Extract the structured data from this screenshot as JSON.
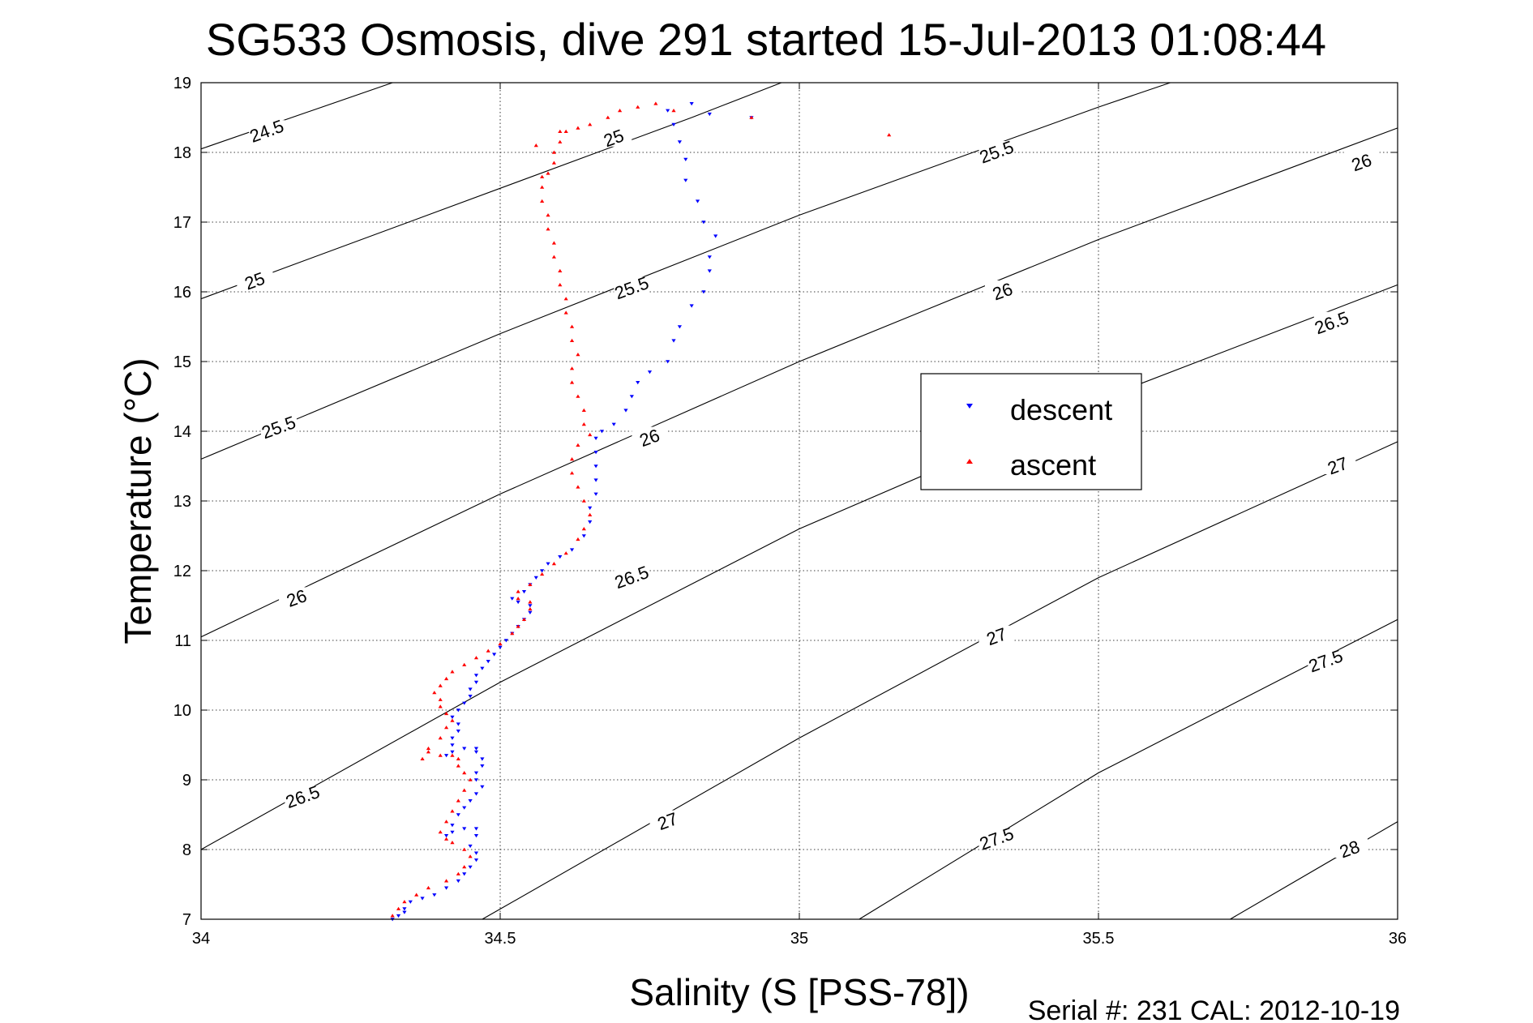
{
  "chart_data": {
    "type": "scatter",
    "title": "SG533 Osmosis, dive 291 started 15-Jul-2013 01:08:44",
    "xlabel": "Salinity (S [PSS-78])",
    "ylabel": "Temperature (°C)",
    "xlim": [
      34,
      36
    ],
    "ylim": [
      7,
      19
    ],
    "xticks": [
      34,
      34.5,
      35,
      35.5,
      36
    ],
    "xtick_labels": [
      "34",
      "34.5",
      "35",
      "35.5",
      "36"
    ],
    "yticks": [
      7,
      8,
      9,
      10,
      11,
      12,
      13,
      14,
      15,
      16,
      17,
      18,
      19
    ],
    "ytick_labels": [
      "7",
      "8",
      "9",
      "10",
      "11",
      "12",
      "13",
      "14",
      "15",
      "16",
      "17",
      "18",
      "19"
    ],
    "grid": true,
    "legend_position": "right-center",
    "footer": "Serial #: 231  CAL: 2012-10-19",
    "density_contours": [
      {
        "sigma": 24.5,
        "label": "24.5",
        "line": [
          [
            34.0,
            18.05
          ],
          [
            34.32,
            19.0
          ]
        ]
      },
      {
        "sigma": 25.0,
        "label": "25",
        "line": [
          [
            34.0,
            15.9
          ],
          [
            34.82,
            18.5
          ],
          [
            34.97,
            19.0
          ]
        ]
      },
      {
        "sigma": 25.0,
        "label": "25",
        "line": [
          [
            34.0,
            15.9
          ],
          [
            34.82,
            18.5
          ],
          [
            34.97,
            19.0
          ]
        ]
      },
      {
        "sigma": 25.5,
        "label": "25.5",
        "line": [
          [
            34.0,
            13.6
          ],
          [
            34.5,
            15.4
          ],
          [
            35.0,
            17.1
          ],
          [
            35.5,
            18.65
          ],
          [
            35.62,
            19.0
          ]
        ]
      },
      {
        "sigma": 26.0,
        "label": "26",
        "line": [
          [
            34.0,
            11.05
          ],
          [
            34.5,
            13.1
          ],
          [
            35.0,
            15.0
          ],
          [
            35.5,
            16.75
          ],
          [
            36.0,
            18.35
          ]
        ]
      },
      {
        "sigma": 26.5,
        "label": "26.5",
        "line": [
          [
            34.0,
            8.0
          ],
          [
            34.5,
            10.4
          ],
          [
            35.0,
            12.6
          ],
          [
            35.5,
            14.45
          ],
          [
            36.0,
            16.1
          ]
        ]
      },
      {
        "sigma": 27.0,
        "label": "27",
        "line": [
          [
            34.47,
            7.0
          ],
          [
            35.0,
            9.6
          ],
          [
            35.5,
            11.9
          ],
          [
            36.0,
            13.85
          ]
        ]
      },
      {
        "sigma": 27.5,
        "label": "27.5",
        "line": [
          [
            35.1,
            7.0
          ],
          [
            35.5,
            9.1
          ],
          [
            36.0,
            11.3
          ]
        ]
      },
      {
        "sigma": 28.0,
        "label": "28",
        "line": [
          [
            35.72,
            7.0
          ],
          [
            36.0,
            8.4
          ]
        ]
      }
    ],
    "contour_labels": [
      {
        "text": "24.5",
        "x": 34.11,
        "y": 18.3
      },
      {
        "text": "25",
        "x": 34.69,
        "y": 18.2
      },
      {
        "text": "25",
        "x": 34.09,
        "y": 16.15
      },
      {
        "text": "25.5",
        "x": 35.33,
        "y": 18.0
      },
      {
        "text": "25.5",
        "x": 34.72,
        "y": 16.05
      },
      {
        "text": "25.5",
        "x": 34.13,
        "y": 14.05
      },
      {
        "text": "26",
        "x": 35.94,
        "y": 17.85
      },
      {
        "text": "26",
        "x": 35.34,
        "y": 16.0
      },
      {
        "text": "26",
        "x": 34.75,
        "y": 13.9
      },
      {
        "text": "26",
        "x": 34.16,
        "y": 11.6
      },
      {
        "text": "26.5",
        "x": 35.89,
        "y": 15.55
      },
      {
        "text": "26.5",
        "x": 34.72,
        "y": 11.9
      },
      {
        "text": "26.5",
        "x": 34.17,
        "y": 8.75
      },
      {
        "text": "27",
        "x": 35.9,
        "y": 13.5
      },
      {
        "text": "27",
        "x": 35.33,
        "y": 11.05
      },
      {
        "text": "27",
        "x": 34.78,
        "y": 8.4
      },
      {
        "text": "27.5",
        "x": 35.88,
        "y": 10.7
      },
      {
        "text": "27.5",
        "x": 35.33,
        "y": 8.15
      },
      {
        "text": "28",
        "x": 35.92,
        "y": 8.0
      }
    ],
    "series": [
      {
        "name": "descent",
        "color": "#0000ff",
        "marker": "triangle-down",
        "points": [
          [
            34.32,
            7.0
          ],
          [
            34.33,
            7.05
          ],
          [
            34.34,
            7.1
          ],
          [
            34.34,
            7.15
          ],
          [
            34.35,
            7.25
          ],
          [
            34.37,
            7.3
          ],
          [
            34.39,
            7.35
          ],
          [
            34.41,
            7.45
          ],
          [
            34.43,
            7.55
          ],
          [
            34.44,
            7.65
          ],
          [
            34.45,
            7.75
          ],
          [
            34.46,
            7.85
          ],
          [
            34.46,
            7.95
          ],
          [
            34.45,
            8.05
          ],
          [
            34.46,
            8.2
          ],
          [
            34.46,
            8.3
          ],
          [
            34.44,
            8.3
          ],
          [
            34.42,
            8.25
          ],
          [
            34.41,
            8.2
          ],
          [
            34.42,
            8.35
          ],
          [
            34.43,
            8.5
          ],
          [
            34.44,
            8.6
          ],
          [
            34.45,
            8.7
          ],
          [
            34.46,
            8.8
          ],
          [
            34.47,
            8.9
          ],
          [
            34.46,
            9.0
          ],
          [
            34.46,
            9.1
          ],
          [
            34.47,
            9.2
          ],
          [
            34.47,
            9.3
          ],
          [
            34.46,
            9.4
          ],
          [
            34.46,
            9.45
          ],
          [
            34.44,
            9.45
          ],
          [
            34.42,
            9.4
          ],
          [
            34.41,
            9.35
          ],
          [
            34.42,
            9.5
          ],
          [
            34.42,
            9.6
          ],
          [
            34.43,
            9.7
          ],
          [
            34.43,
            9.8
          ],
          [
            34.42,
            9.9
          ],
          [
            34.43,
            10.0
          ],
          [
            34.44,
            10.1
          ],
          [
            34.45,
            10.2
          ],
          [
            34.45,
            10.3
          ],
          [
            34.46,
            10.4
          ],
          [
            34.46,
            10.5
          ],
          [
            34.47,
            10.6
          ],
          [
            34.48,
            10.7
          ],
          [
            34.49,
            10.8
          ],
          [
            34.5,
            10.9
          ],
          [
            34.51,
            11.0
          ],
          [
            34.52,
            11.1
          ],
          [
            34.53,
            11.2
          ],
          [
            34.54,
            11.3
          ],
          [
            34.55,
            11.4
          ],
          [
            34.55,
            11.5
          ],
          [
            34.53,
            11.55
          ],
          [
            34.52,
            11.6
          ],
          [
            34.54,
            11.7
          ],
          [
            34.55,
            11.8
          ],
          [
            34.56,
            11.9
          ],
          [
            34.57,
            12.0
          ],
          [
            34.58,
            12.1
          ],
          [
            34.6,
            12.2
          ],
          [
            34.62,
            12.3
          ],
          [
            34.64,
            12.5
          ],
          [
            34.65,
            12.7
          ],
          [
            34.65,
            12.9
          ],
          [
            34.66,
            13.1
          ],
          [
            34.66,
            13.3
          ],
          [
            34.66,
            13.5
          ],
          [
            34.66,
            13.7
          ],
          [
            34.66,
            13.9
          ],
          [
            34.67,
            14.0
          ],
          [
            34.69,
            14.1
          ],
          [
            34.71,
            14.3
          ],
          [
            34.72,
            14.5
          ],
          [
            34.73,
            14.7
          ],
          [
            34.75,
            14.85
          ],
          [
            34.78,
            15.0
          ],
          [
            34.79,
            15.3
          ],
          [
            34.8,
            15.5
          ],
          [
            34.82,
            15.8
          ],
          [
            34.84,
            16.0
          ],
          [
            34.85,
            16.3
          ],
          [
            34.85,
            16.5
          ],
          [
            34.86,
            16.8
          ],
          [
            34.84,
            17.0
          ],
          [
            34.83,
            17.3
          ],
          [
            34.81,
            17.6
          ],
          [
            34.81,
            17.9
          ],
          [
            34.8,
            18.15
          ],
          [
            34.79,
            18.4
          ],
          [
            34.78,
            18.6
          ],
          [
            34.82,
            18.7
          ],
          [
            34.85,
            18.55
          ],
          [
            34.92,
            18.5
          ]
        ]
      },
      {
        "name": "ascent",
        "color": "#ff0000",
        "marker": "triangle-up",
        "points": [
          [
            34.32,
            7.05
          ],
          [
            34.33,
            7.15
          ],
          [
            34.34,
            7.25
          ],
          [
            34.36,
            7.35
          ],
          [
            34.38,
            7.45
          ],
          [
            34.41,
            7.55
          ],
          [
            34.43,
            7.65
          ],
          [
            34.44,
            7.75
          ],
          [
            34.45,
            7.9
          ],
          [
            34.44,
            8.0
          ],
          [
            34.42,
            8.1
          ],
          [
            34.41,
            8.15
          ],
          [
            34.4,
            8.25
          ],
          [
            34.41,
            8.4
          ],
          [
            34.42,
            8.55
          ],
          [
            34.43,
            8.7
          ],
          [
            34.44,
            8.85
          ],
          [
            34.45,
            9.0
          ],
          [
            34.44,
            9.1
          ],
          [
            34.43,
            9.2
          ],
          [
            34.43,
            9.3
          ],
          [
            34.42,
            9.35
          ],
          [
            34.4,
            9.35
          ],
          [
            34.38,
            9.4
          ],
          [
            34.37,
            9.3
          ],
          [
            34.38,
            9.45
          ],
          [
            34.4,
            9.6
          ],
          [
            34.41,
            9.75
          ],
          [
            34.42,
            9.85
          ],
          [
            34.41,
            9.95
          ],
          [
            34.4,
            10.05
          ],
          [
            34.4,
            10.15
          ],
          [
            34.39,
            10.25
          ],
          [
            34.4,
            10.35
          ],
          [
            34.41,
            10.45
          ],
          [
            34.42,
            10.55
          ],
          [
            34.44,
            10.65
          ],
          [
            34.46,
            10.75
          ],
          [
            34.48,
            10.85
          ],
          [
            34.5,
            10.95
          ],
          [
            34.52,
            11.1
          ],
          [
            34.53,
            11.2
          ],
          [
            34.54,
            11.3
          ],
          [
            34.55,
            11.45
          ],
          [
            34.55,
            11.55
          ],
          [
            34.53,
            11.6
          ],
          [
            34.53,
            11.7
          ],
          [
            34.55,
            11.8
          ],
          [
            34.57,
            11.95
          ],
          [
            34.59,
            12.1
          ],
          [
            34.61,
            12.25
          ],
          [
            34.63,
            12.45
          ],
          [
            34.64,
            12.6
          ],
          [
            34.65,
            12.8
          ],
          [
            34.64,
            13.0
          ],
          [
            34.63,
            13.2
          ],
          [
            34.62,
            13.4
          ],
          [
            34.62,
            13.6
          ],
          [
            34.63,
            13.8
          ],
          [
            34.65,
            13.95
          ],
          [
            34.64,
            14.1
          ],
          [
            34.64,
            14.3
          ],
          [
            34.63,
            14.5
          ],
          [
            34.62,
            14.7
          ],
          [
            34.62,
            14.9
          ],
          [
            34.63,
            15.1
          ],
          [
            34.62,
            15.3
          ],
          [
            34.62,
            15.5
          ],
          [
            34.61,
            15.7
          ],
          [
            34.61,
            15.9
          ],
          [
            34.6,
            16.1
          ],
          [
            34.6,
            16.3
          ],
          [
            34.59,
            16.5
          ],
          [
            34.59,
            16.7
          ],
          [
            34.58,
            16.9
          ],
          [
            34.58,
            17.1
          ],
          [
            34.57,
            17.3
          ],
          [
            34.57,
            17.5
          ],
          [
            34.58,
            17.7
          ],
          [
            34.59,
            17.85
          ],
          [
            34.59,
            18.0
          ],
          [
            34.6,
            18.15
          ],
          [
            34.61,
            18.3
          ],
          [
            34.63,
            18.35
          ],
          [
            34.65,
            18.4
          ],
          [
            34.68,
            18.5
          ],
          [
            34.7,
            18.6
          ],
          [
            34.73,
            18.65
          ],
          [
            34.76,
            18.7
          ],
          [
            34.79,
            18.6
          ],
          [
            34.92,
            18.5
          ],
          [
            35.15,
            18.25
          ],
          [
            34.56,
            18.1
          ],
          [
            34.57,
            17.65
          ],
          [
            34.6,
            18.3
          ]
        ]
      }
    ]
  }
}
